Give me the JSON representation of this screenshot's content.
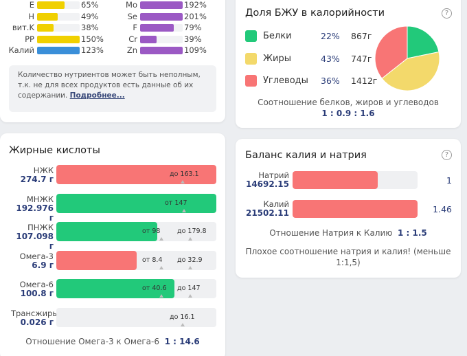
{
  "colors": {
    "red": "#f87575",
    "green": "#22c97a",
    "yellow": "#f3d96b",
    "blue": "#3a8fd9",
    "purple": "#9b59c4",
    "vit_yellow": "#f0d000"
  },
  "vitamins_left": [
    {
      "name": "E",
      "pct": "65%",
      "fill": 0.65,
      "color": "#f0d000"
    },
    {
      "name": "H",
      "pct": "49%",
      "fill": 0.49,
      "color": "#f0d000"
    },
    {
      "name": "вит.K",
      "pct": "38%",
      "fill": 0.38,
      "color": "#f0d000"
    },
    {
      "name": "PP",
      "pct": "150%",
      "fill": 1.0,
      "color": "#f0d000"
    },
    {
      "name": "Калий",
      "pct": "123%",
      "fill": 1.0,
      "color": "#3a8fd9"
    }
  ],
  "vitamins_right": [
    {
      "name": "Mo",
      "pct": "192%",
      "fill": 1.0,
      "color": "#9b59c4"
    },
    {
      "name": "Se",
      "pct": "201%",
      "fill": 1.0,
      "color": "#9b59c4"
    },
    {
      "name": "F",
      "pct": "79%",
      "fill": 0.79,
      "color": "#9b59c4"
    },
    {
      "name": "Cr",
      "pct": "39%",
      "fill": 0.39,
      "color": "#9b59c4"
    },
    {
      "name": "Zn",
      "pct": "109%",
      "fill": 1.0,
      "color": "#9b59c4"
    }
  ],
  "note": {
    "line1": "Количество нутриентов может быть неполным,",
    "line2": "т.к. не для всех продуктов есть данные об их",
    "line3": "содержании.",
    "link": "Подробнее..."
  },
  "fatty_acids": {
    "title": "Жирные кислоты",
    "items": [
      {
        "name": "НЖК",
        "value": "274.7 г",
        "fill": 1.0,
        "color": "#f87575",
        "from": "",
        "to": "до 163.1"
      },
      {
        "name": "МНЖК",
        "value": "192.976 г",
        "fill": 1.0,
        "color": "#22c97a",
        "from": "от 147",
        "to": ""
      },
      {
        "name": "ПНЖК",
        "value": "107.098 г",
        "fill": 0.63,
        "color": "#22c97a",
        "from": "от 98",
        "to": "до 179.8"
      },
      {
        "name": "Омега-3",
        "value": "6.9 г",
        "fill": 0.5,
        "color": "#f87575",
        "from": "от 8.4",
        "to": "до 32.9"
      },
      {
        "name": "Омега-6",
        "value": "100.8 г",
        "fill": 0.74,
        "color": "#22c97a",
        "from": "от 40.6",
        "to": "до 147"
      },
      {
        "name": "Трансжиры",
        "value": "0.026 г",
        "fill": 0.0,
        "color": "#22c97a",
        "from": "",
        "to": "до 16.1"
      }
    ],
    "ratio_label": "Отношение Омега-3 к Омега-6",
    "ratio_value": "1 : 14.6"
  },
  "bju": {
    "title": "Доля БЖУ в калорийности",
    "help": "?",
    "items": [
      {
        "name": "Белки",
        "pct": "22%",
        "grams": "867г",
        "color": "#22c97a",
        "share": 22
      },
      {
        "name": "Жиры",
        "pct": "43%",
        "grams": "747г",
        "color": "#f3d96b",
        "share": 43
      },
      {
        "name": "Углеводы",
        "pct": "36%",
        "grams": "1412г",
        "color": "#f87575",
        "share": 36
      }
    ],
    "ratio_label": "Соотношение белков, жиров и углеводов",
    "ratio_value": "1 : 0.9 : 1.6"
  },
  "kn": {
    "title": "Баланс калия и натрия",
    "help": "?",
    "items": [
      {
        "name": "Натрий",
        "value": "14692.15",
        "fill": 0.68,
        "num": "1"
      },
      {
        "name": "Калий",
        "value": "21502.11",
        "fill": 1.0,
        "num": "1.46"
      }
    ],
    "ratio_label": "Отношение Натрия к Калию",
    "ratio_value": "1 : 1.5",
    "warning_line1": "Плохое соотношение натрия и калия! (меньше",
    "warning_line2": "1:1,5)"
  }
}
